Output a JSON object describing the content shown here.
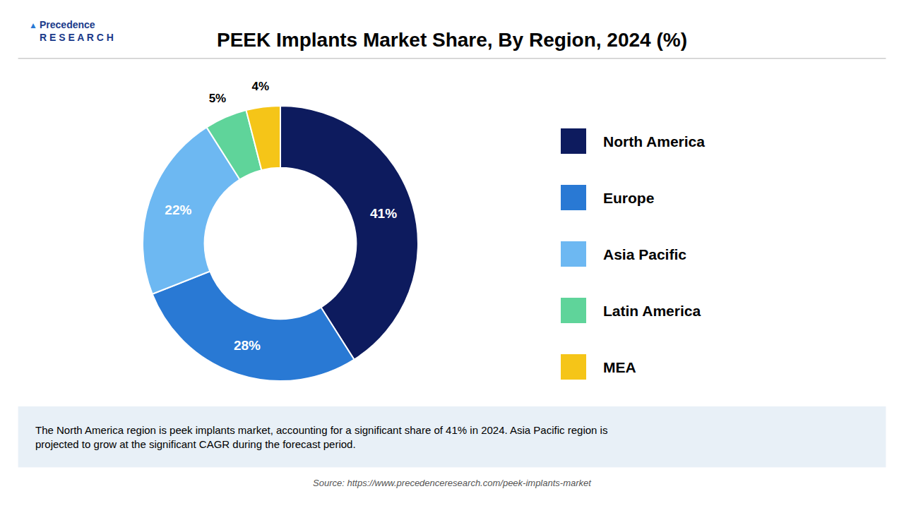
{
  "chart_data": {
    "type": "donut",
    "title": "PEEK Implants Market Share, By Region, 2024 (%)",
    "categories": [
      "North America",
      "Europe",
      "Asia Pacific",
      "Latin America",
      "MEA"
    ],
    "values": [
      41,
      28,
      22,
      5,
      4
    ],
    "value_labels": [
      "41%",
      "28%",
      "22%",
      "5%",
      "4%"
    ],
    "colors": [
      "#0d1b5e",
      "#2979d4",
      "#6db8f2",
      "#5fd49a",
      "#f5c518"
    ],
    "data_labels": true,
    "legend": "right",
    "annotations": [
      "The North America region is peek implants market, accounting for a significant share of 41% in 2024. Asia Pacific region is\nprojected to grow at the significant CAGR during the forecast period.",
      "Source: https://www.precedenceresearch.com/peek-implants-market",
      "Precedence\nR E S E A R C H",
      "▲"
    ]
  }
}
